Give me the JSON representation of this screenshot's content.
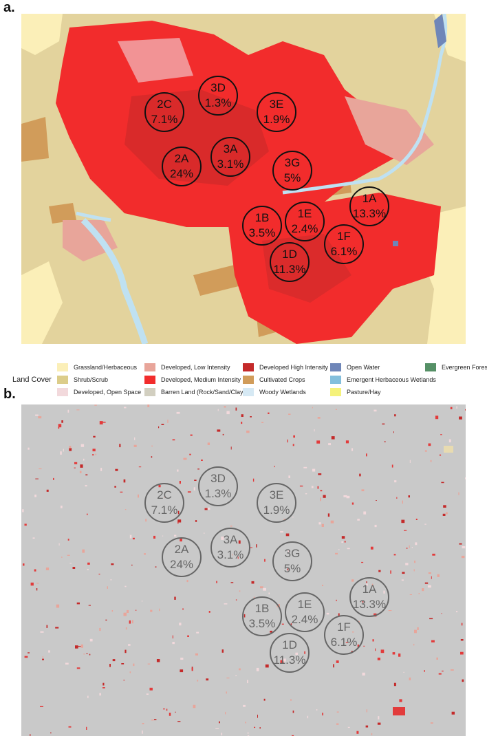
{
  "panels": {
    "a": {
      "label": "a."
    },
    "b": {
      "label": "b."
    }
  },
  "zones": [
    {
      "id": "3D",
      "value": "1.3%"
    },
    {
      "id": "2C",
      "value": "7.1%"
    },
    {
      "id": "3E",
      "value": "1.9%"
    },
    {
      "id": "2A",
      "value": "24%"
    },
    {
      "id": "3A",
      "value": "3.1%"
    },
    {
      "id": "3G",
      "value": "5%"
    },
    {
      "id": "1A",
      "value": "13.3%"
    },
    {
      "id": "1E",
      "value": "2.4%"
    },
    {
      "id": "1B",
      "value": "3.5%"
    },
    {
      "id": "1F",
      "value": "6.1%"
    },
    {
      "id": "1D",
      "value": "11.3%"
    }
  ],
  "legend": {
    "title": "Land Cover",
    "items": [
      {
        "label": "Grassland/Herbaceous",
        "color": "#fbefb8"
      },
      {
        "label": "Shrub/Scrub",
        "color": "#dccd8a"
      },
      {
        "label": "Developed, Open Space",
        "color": "#f2d9dc"
      },
      {
        "label": "Developed, Low Intensity",
        "color": "#e8a59a"
      },
      {
        "label": "Developed, Medium Intensity",
        "color": "#f22c2c"
      },
      {
        "label": "Barren Land (Rock/Sand/Clay)",
        "color": "#d2cfc0"
      },
      {
        "label": "Developed High Intensity",
        "color": "#c42a2a"
      },
      {
        "label": "Cultivated Crops",
        "color": "#d19c5a"
      },
      {
        "label": "Woody Wetlands",
        "color": "#d6e9f4"
      },
      {
        "label": "Open Water",
        "color": "#6f86b8"
      },
      {
        "label": "Emergent Herbaceous Wetlands",
        "color": "#83bfdc"
      },
      {
        "label": "Pasture/Hay",
        "color": "#f5f27a"
      },
      {
        "label": "Evergreen Forest",
        "color": "#559066"
      }
    ]
  }
}
